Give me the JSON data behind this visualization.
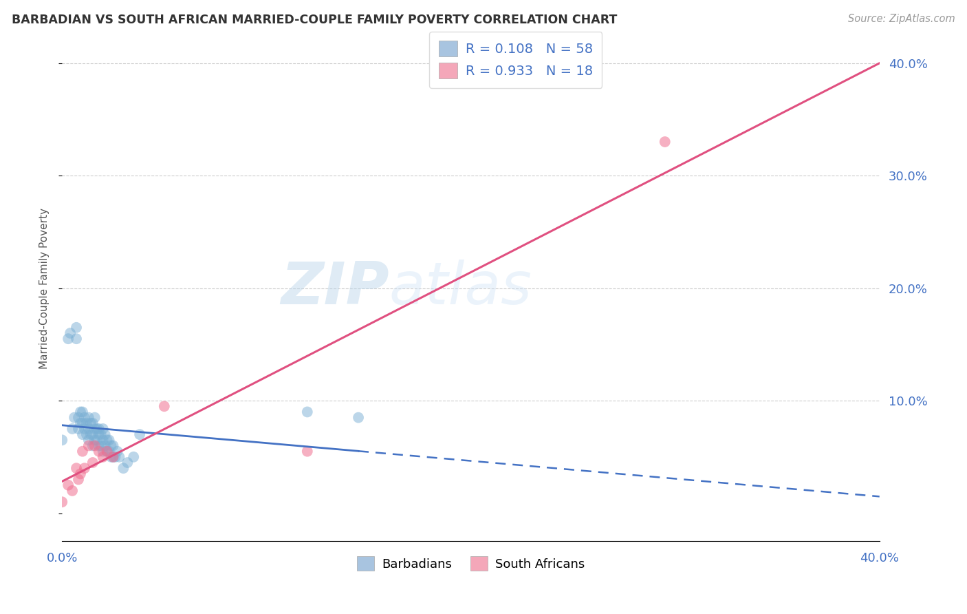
{
  "title": "BARBADIAN VS SOUTH AFRICAN MARRIED-COUPLE FAMILY POVERTY CORRELATION CHART",
  "source": "Source: ZipAtlas.com",
  "ylabel": "Married-Couple Family Poverty",
  "xlim": [
    0.0,
    0.4
  ],
  "ylim": [
    -0.025,
    0.425
  ],
  "watermark_zip": "ZIP",
  "watermark_atlas": "atlas",
  "barbadians_x": [
    0.0,
    0.003,
    0.004,
    0.005,
    0.006,
    0.007,
    0.007,
    0.008,
    0.008,
    0.009,
    0.009,
    0.01,
    0.01,
    0.01,
    0.011,
    0.011,
    0.012,
    0.012,
    0.013,
    0.013,
    0.013,
    0.014,
    0.014,
    0.015,
    0.015,
    0.015,
    0.016,
    0.016,
    0.016,
    0.017,
    0.017,
    0.018,
    0.018,
    0.018,
    0.019,
    0.019,
    0.02,
    0.02,
    0.02,
    0.021,
    0.021,
    0.022,
    0.022,
    0.023,
    0.023,
    0.024,
    0.024,
    0.025,
    0.025,
    0.026,
    0.027,
    0.028,
    0.03,
    0.032,
    0.035,
    0.038,
    0.12,
    0.145
  ],
  "barbadians_y": [
    0.065,
    0.155,
    0.16,
    0.075,
    0.085,
    0.155,
    0.165,
    0.075,
    0.085,
    0.08,
    0.09,
    0.07,
    0.08,
    0.09,
    0.075,
    0.085,
    0.07,
    0.08,
    0.065,
    0.075,
    0.085,
    0.07,
    0.08,
    0.06,
    0.07,
    0.08,
    0.065,
    0.075,
    0.085,
    0.065,
    0.075,
    0.06,
    0.07,
    0.075,
    0.06,
    0.07,
    0.055,
    0.065,
    0.075,
    0.06,
    0.07,
    0.055,
    0.065,
    0.055,
    0.065,
    0.05,
    0.06,
    0.05,
    0.06,
    0.05,
    0.055,
    0.05,
    0.04,
    0.045,
    0.05,
    0.07,
    0.09,
    0.085
  ],
  "south_africans_x": [
    0.0,
    0.003,
    0.005,
    0.007,
    0.008,
    0.009,
    0.01,
    0.011,
    0.013,
    0.015,
    0.016,
    0.018,
    0.02,
    0.022,
    0.025,
    0.05,
    0.12,
    0.295
  ],
  "south_africans_y": [
    0.01,
    0.025,
    0.02,
    0.04,
    0.03,
    0.035,
    0.055,
    0.04,
    0.06,
    0.045,
    0.06,
    0.055,
    0.05,
    0.055,
    0.05,
    0.095,
    0.055,
    0.33
  ],
  "blue_dot_color": "#7aafd4",
  "pink_dot_color": "#f07090",
  "blue_line_color": "#4472c4",
  "pink_line_color": "#e05080",
  "blue_patch_color": "#a8c4e0",
  "pink_patch_color": "#f4a7b9",
  "R_barbadians": 0.108,
  "N_barbadians": 58,
  "R_south_africans": 0.933,
  "N_south_africans": 18,
  "background_color": "#ffffff",
  "grid_color": "#cccccc"
}
